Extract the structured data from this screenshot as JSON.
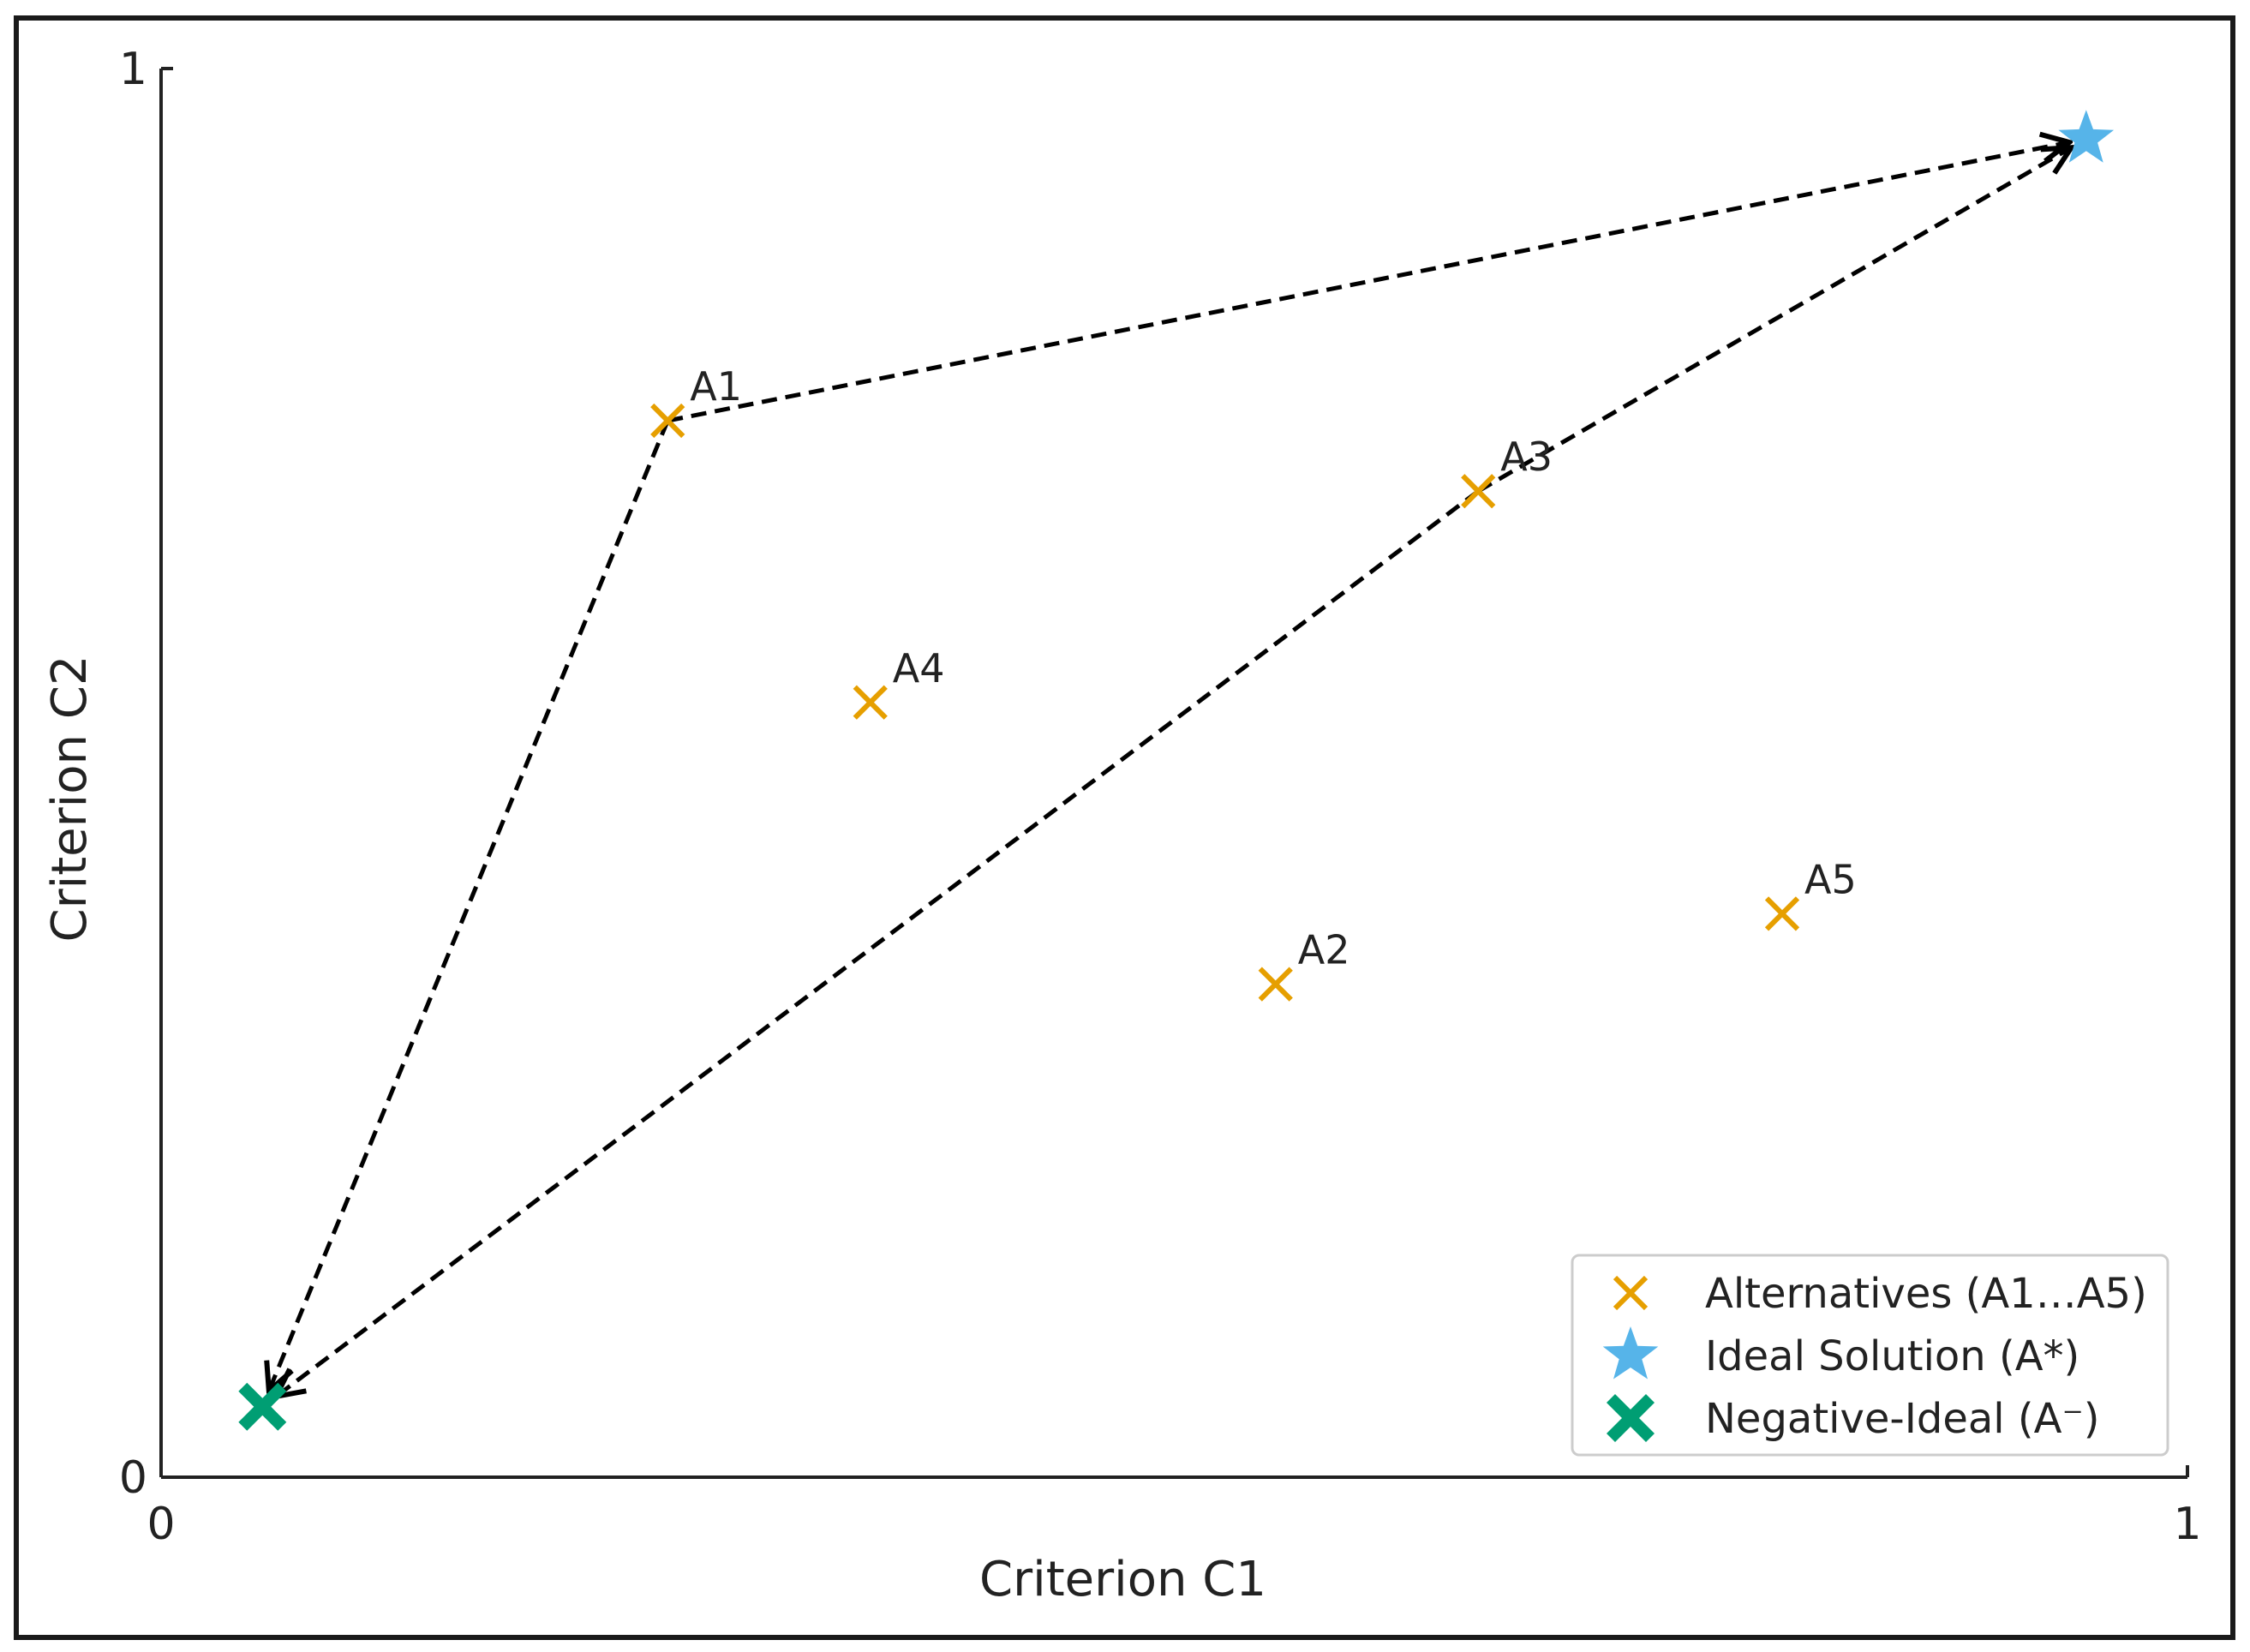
{
  "chart_data": {
    "type": "scatter",
    "title": "",
    "xlabel": "Criterion C1",
    "ylabel": "Criterion C2",
    "xlim": [
      0,
      1
    ],
    "ylim": [
      0,
      1
    ],
    "x_ticks": [
      "0",
      "1"
    ],
    "y_ticks": [
      "0",
      "1"
    ],
    "grid": false,
    "legend_position": "lower-right",
    "series": [
      {
        "name": "Alternatives (A1…A5)",
        "marker": "x",
        "color": "#E69F00",
        "points": [
          {
            "label": "A1",
            "x": 0.25,
            "y": 0.75
          },
          {
            "label": "A2",
            "x": 0.55,
            "y": 0.35
          },
          {
            "label": "A3",
            "x": 0.65,
            "y": 0.7
          },
          {
            "label": "A4",
            "x": 0.35,
            "y": 0.55
          },
          {
            "label": "A5",
            "x": 0.8,
            "y": 0.4
          }
        ]
      },
      {
        "name": "Ideal Solution (A*)",
        "marker": "star",
        "color": "#56B4E9",
        "points": [
          {
            "x": 0.95,
            "y": 0.95
          }
        ]
      },
      {
        "name": "Negative-Ideal (A⁻)",
        "marker": "X",
        "color": "#009E73",
        "points": [
          {
            "x": 0.05,
            "y": 0.05
          }
        ]
      }
    ],
    "arrows": [
      {
        "from": "A1",
        "to": "Ideal Solution (A*)"
      },
      {
        "from": "A1",
        "to": "Negative-Ideal (A⁻)"
      },
      {
        "from": "A3",
        "to": "Ideal Solution (A*)"
      },
      {
        "from": "A3",
        "to": "Negative-Ideal (A⁻)"
      }
    ],
    "arrow_color": "#000000"
  }
}
